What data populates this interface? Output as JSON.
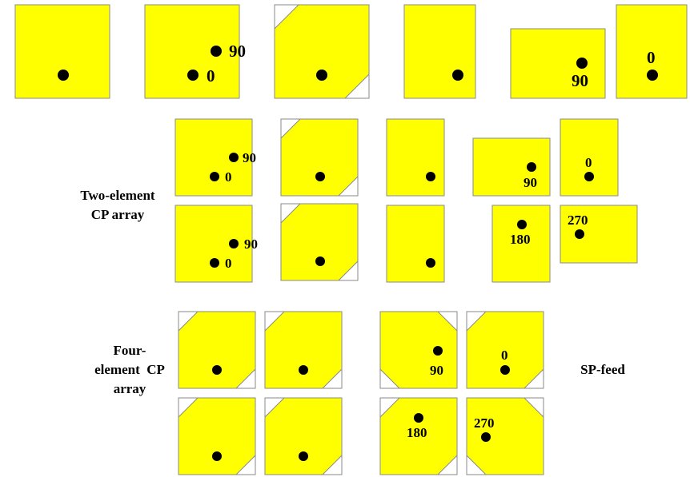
{
  "colors": {
    "patch": "#ffff00",
    "border": "#8a8a8a",
    "feed": "#000000",
    "cut": "#ffffff"
  },
  "labels": {
    "two_element_l1": "Two-element",
    "two_element_l2": "CP array",
    "four_element_l1": "Four-",
    "four_element_l2": "element  CP",
    "four_element_l3": "array",
    "sp_feed": "SP-feed"
  },
  "phase_labels": {
    "r1_b": "90",
    "r1_a": "0",
    "r1_e": "90",
    "r1_f": "0",
    "r2_b": "90",
    "r2_a": "0",
    "r2_e": "90",
    "r2_f": "0",
    "r3_b": "90",
    "r3_a": "0",
    "r3_e": "180",
    "r3_f": "270",
    "r4_e": "90",
    "r4_f": "0",
    "r5_e": "180",
    "r5_f": "270"
  }
}
